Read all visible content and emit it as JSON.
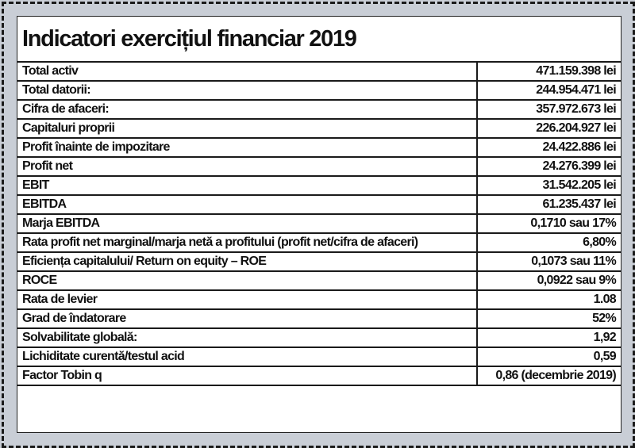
{
  "title": "Indicatori exercițiul financiar 2019",
  "rows": [
    {
      "label": "Total activ",
      "value": "471.159.398 lei"
    },
    {
      "label": "Total datorii:",
      "value": "244.954.471 lei"
    },
    {
      "label": "Cifra de afaceri:",
      "value": "357.972.673 lei"
    },
    {
      "label": "Capitaluri proprii",
      "value": "226.204.927 lei"
    },
    {
      "label": "Profit înainte de impozitare",
      "value": "24.422.886 lei"
    },
    {
      "label": "Profit net",
      "value": "24.276.399 lei"
    },
    {
      "label": "EBIT",
      "value": "31.542.205 lei"
    },
    {
      "label": "EBITDA",
      "value": "61.235.437 lei"
    },
    {
      "label": "Marja EBITDA",
      "value": "0,1710 sau 17%"
    },
    {
      "label": "Rata profit net marginal/marja netă a profitului (profit net/cifra de afaceri)",
      "value": "6,80%"
    },
    {
      "label": "Eficiența capitalului/ Return on equity – ROE",
      "value": "0,1073 sau 11%"
    },
    {
      "label": "ROCE",
      "value": "0,0922 sau  9%"
    },
    {
      "label": "Rata de levier",
      "value": "1.08"
    },
    {
      "label": "Grad de îndatorare",
      "value": "52%"
    },
    {
      "label": "Solvabilitate globală:",
      "value": "1,92"
    },
    {
      "label": "Lichiditate curentă/testul acid",
      "value": "0,59"
    },
    {
      "label": "Factor Tobin q",
      "value": "0,86 (decembrie 2019)"
    }
  ]
}
